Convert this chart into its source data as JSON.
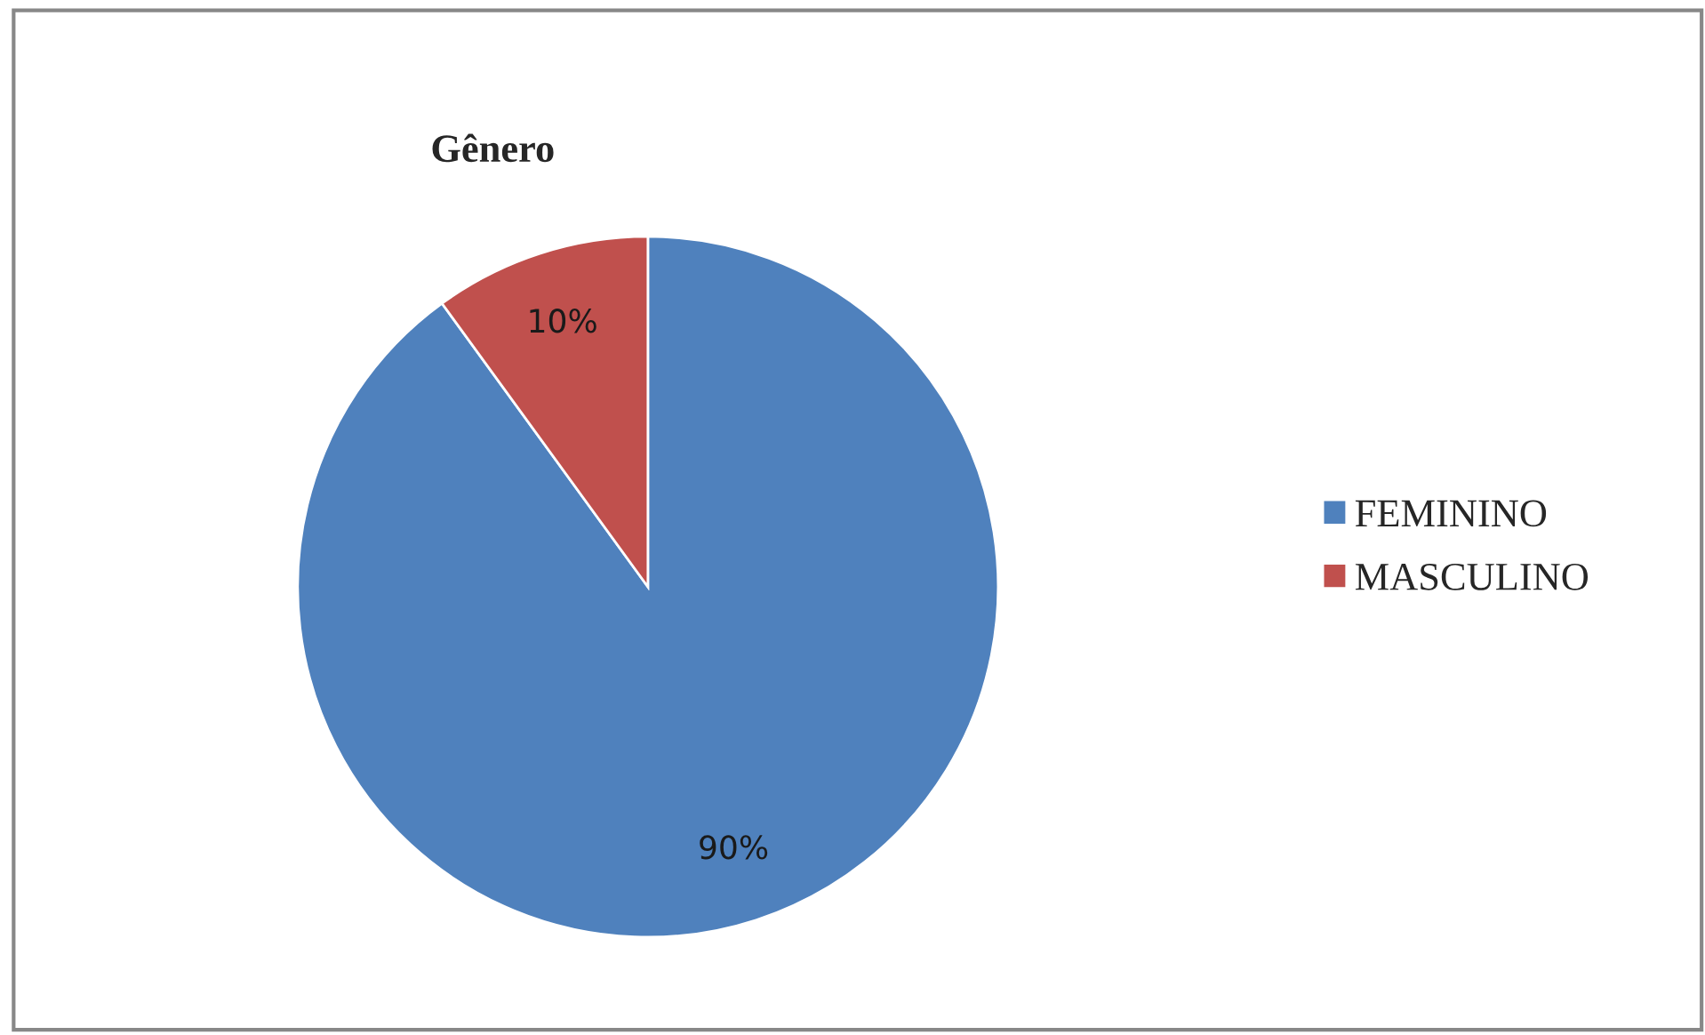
{
  "chart_data": {
    "type": "pie",
    "title": "Gênero",
    "categories": [
      "FEMININO",
      "MASCULINO"
    ],
    "values": [
      90,
      10
    ],
    "colors": [
      "#4f81bd",
      "#c0504d"
    ],
    "value_labels": [
      "90%",
      "10%"
    ],
    "legend": "right"
  }
}
